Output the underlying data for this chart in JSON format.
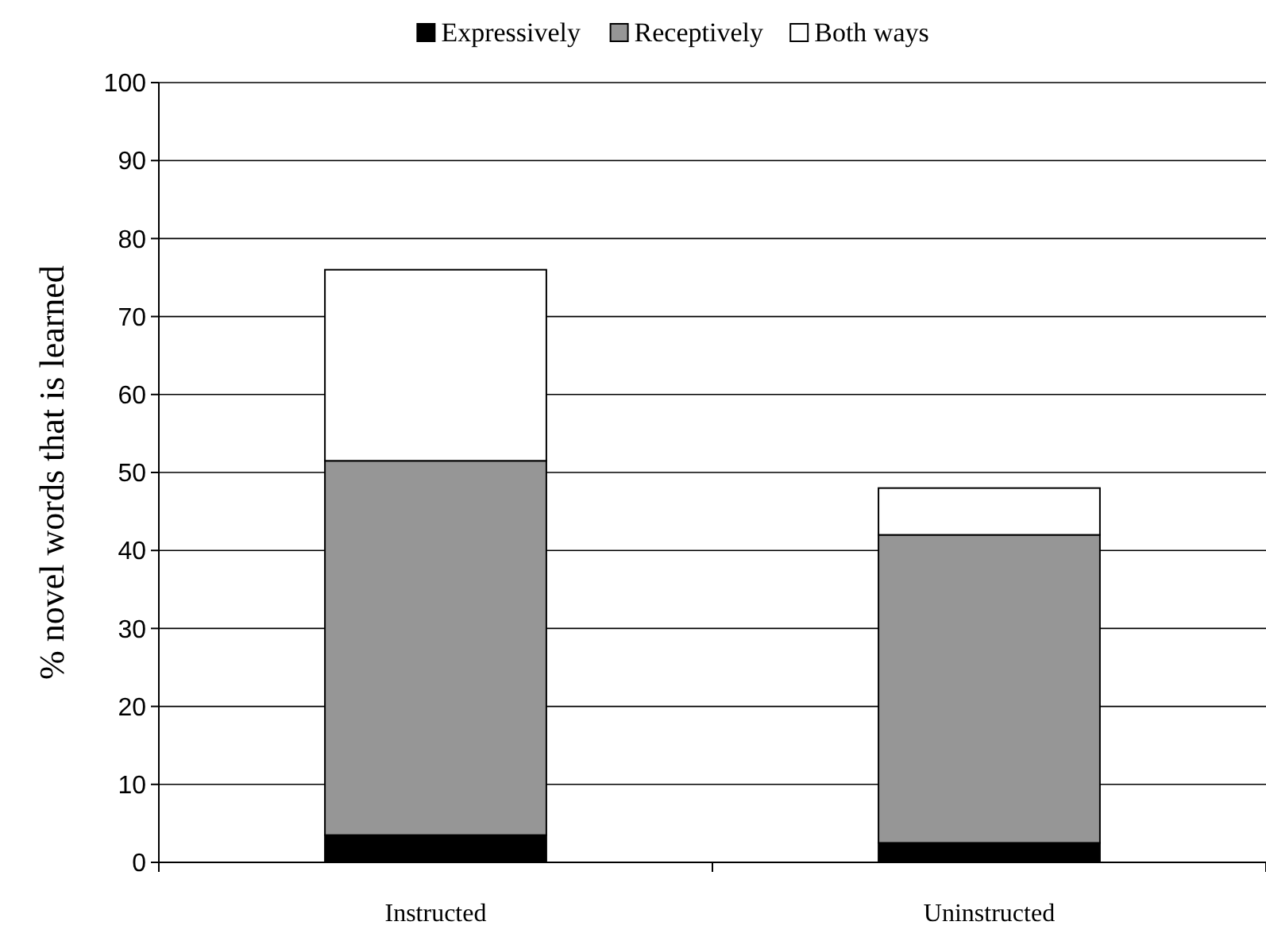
{
  "chart_data": {
    "type": "bar",
    "stacked": true,
    "ylabel": "% novel words that is learned",
    "categories": [
      "Instructed",
      "Uninstructed"
    ],
    "series": [
      {
        "name": "Expressively",
        "color": "#000000",
        "values": [
          3.5,
          2.5
        ]
      },
      {
        "name": "Receptively",
        "color": "#969696",
        "values": [
          48,
          39.5
        ]
      },
      {
        "name": "Both ways",
        "color": "#ffffff",
        "values": [
          24.5,
          6
        ]
      }
    ],
    "ylim": [
      0,
      100
    ],
    "yticks": [
      0,
      10,
      20,
      30,
      40,
      50,
      60,
      70,
      80,
      90,
      100
    ],
    "grid": "y",
    "legend": "top"
  }
}
